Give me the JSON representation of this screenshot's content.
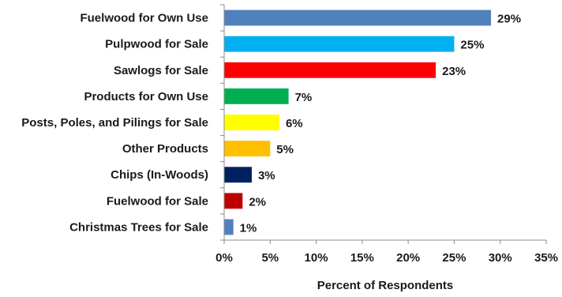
{
  "chart_data": {
    "type": "bar",
    "orientation": "horizontal",
    "categories": [
      "Fuelwood for Own Use",
      "Pulpwood for Sale",
      "Sawlogs for Sale",
      "Products for Own Use",
      "Posts, Poles, and Pilings for Sale",
      "Other Products",
      "Chips (In-Woods)",
      "Fuelwood for Sale",
      "Christmas Trees for Sale"
    ],
    "values": [
      29,
      25,
      23,
      7,
      6,
      5,
      3,
      2,
      1
    ],
    "value_labels": [
      "29%",
      "25%",
      "23%",
      "7%",
      "6%",
      "5%",
      "3%",
      "2%",
      "1%"
    ],
    "colors": [
      "#4f81bd",
      "#00b0f0",
      "#ff0000",
      "#00b050",
      "#ffff00",
      "#ffc000",
      "#002060",
      "#c00000",
      "#4f81bd"
    ],
    "xlabel": "Percent of Respondents",
    "xlim": [
      0,
      35
    ],
    "xticks": [
      0,
      5,
      10,
      15,
      20,
      25,
      30,
      35
    ],
    "xtick_labels": [
      "0%",
      "5%",
      "10%",
      "15%",
      "20%",
      "25%",
      "30%",
      "35%"
    ],
    "grid": false
  }
}
